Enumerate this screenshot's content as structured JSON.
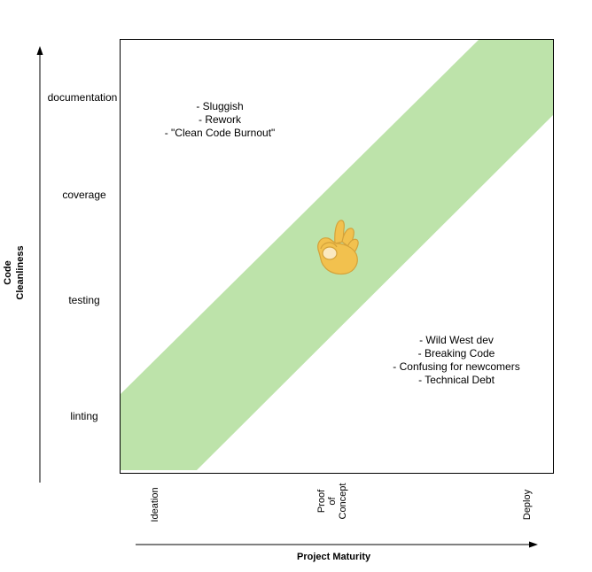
{
  "y_axis": {
    "title_line1": "Code",
    "title_line2": "Cleanliness",
    "levels": [
      "documentation",
      "coverage",
      "testing",
      "linting"
    ]
  },
  "x_axis": {
    "title": "Project Maturity",
    "ticks": [
      {
        "lines": [
          "Ideation"
        ]
      },
      {
        "lines": [
          "Proof",
          "of",
          "Concept"
        ]
      },
      {
        "lines": [
          "Deploy"
        ]
      }
    ]
  },
  "notes": {
    "top_left": [
      "- Sluggish",
      "- Rework",
      "- \"Clean Code Burnout\""
    ],
    "bottom_right": [
      "- Wild West dev",
      "- Breaking Code",
      "- Confusing for newcomers",
      "- Technical Debt"
    ]
  },
  "colors": {
    "band": "#bde3aa",
    "axis": "#000000",
    "emoji_fill": "#f2c14e",
    "emoji_stroke": "#d4a23a"
  },
  "icons": {
    "center": "ok-hand-icon"
  }
}
